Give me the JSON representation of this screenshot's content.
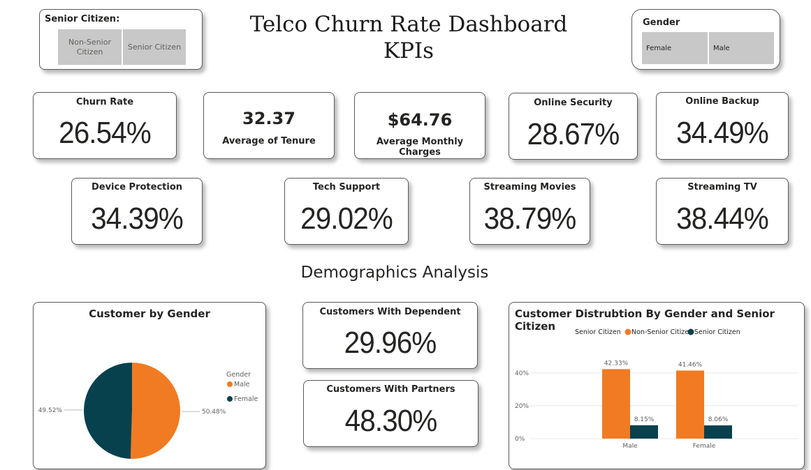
{
  "title": {
    "line1": "Telco Churn Rate Dashboard",
    "line2": "KPIs"
  },
  "senior_slicer": {
    "label": "Senior Citizen:",
    "options": [
      "Non-Senior Citizen",
      "Senior Citizen"
    ]
  },
  "gender_slicer": {
    "label": "Gender",
    "options": [
      "Female",
      "Male"
    ]
  },
  "kpis": {
    "churn_rate": {
      "label": "Churn Rate",
      "value": "26.54%"
    },
    "tenure": {
      "value": "32.37",
      "label": "Average of Tenure"
    },
    "monthly_charges": {
      "value": "$64.76",
      "label": "Average Monthly Charges"
    },
    "online_security": {
      "label": "Online Security",
      "value": "28.67%"
    },
    "online_backup": {
      "label": "Online Backup",
      "value": "34.49%"
    },
    "device_protection": {
      "label": "Device Protection",
      "value": "34.39%"
    },
    "tech_support": {
      "label": "Tech Support",
      "value": "29.02%"
    },
    "streaming_movies": {
      "label": "Streaming Movies",
      "value": "38.79%"
    },
    "streaming_tv": {
      "label": "Streaming TV",
      "value": "38.44%"
    },
    "dependents": {
      "label": "Customers With Dependent",
      "value": "29.96%"
    },
    "partners": {
      "label": "Customers With Partners",
      "value": "48.30%"
    }
  },
  "section_title": "Demographics Analysis",
  "colors": {
    "orange": "#f07b22",
    "teal": "#08414e",
    "slicer_gray": "#c8c8c8"
  },
  "chart_data": [
    {
      "type": "pie",
      "title": "Customer by Gender",
      "legend_title": "Gender",
      "legend_position": "right",
      "categories": [
        "Male",
        "Female"
      ],
      "values": [
        50.48,
        49.52
      ],
      "labels": [
        "50.48%",
        "49.52%"
      ],
      "colors": [
        "#f07b22",
        "#08414e"
      ]
    },
    {
      "type": "bar",
      "title": "Customer Distrubtion By Gender and Senior Citizen",
      "legend_title": "Senior Citizen",
      "legend_position": "top-left",
      "categories": [
        "Male",
        "Female"
      ],
      "series": [
        {
          "name": "Non-Senior Citizen",
          "values": [
            42.33,
            41.46
          ],
          "labels": [
            "42.33%",
            "41.46%"
          ],
          "color": "#f07b22"
        },
        {
          "name": "Senior Citizen",
          "values": [
            8.15,
            8.06
          ],
          "labels": [
            "8.15%",
            "8.06%"
          ],
          "color": "#08414e"
        }
      ],
      "yticks": [
        "0%",
        "20%",
        "40%"
      ],
      "ylim": [
        0,
        48
      ],
      "grid": true
    }
  ]
}
